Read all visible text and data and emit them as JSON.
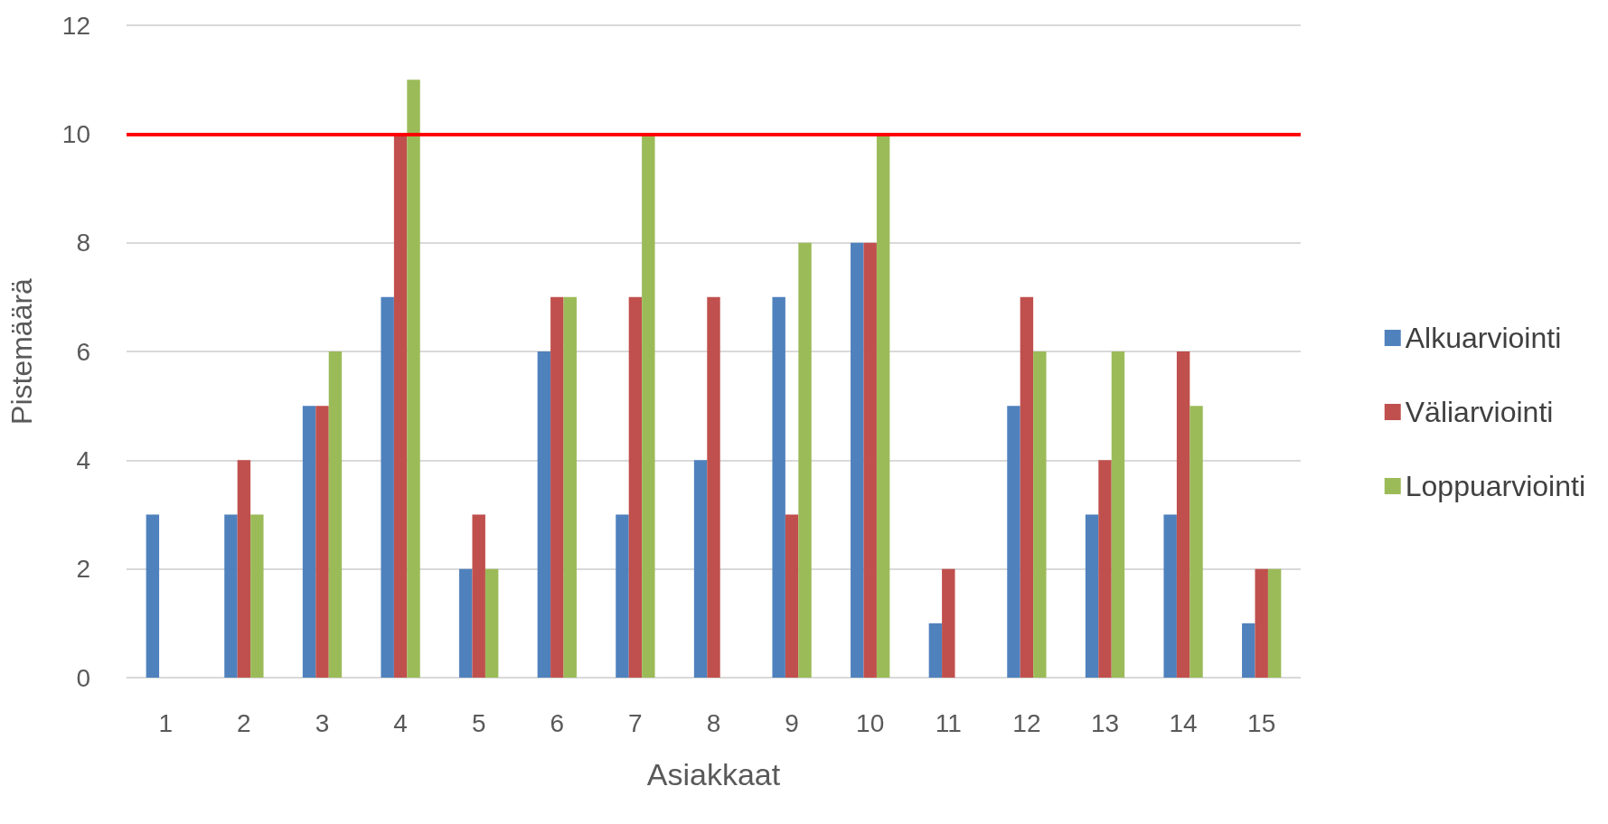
{
  "chart_data": {
    "type": "bar",
    "xlabel": "Asiakkaat",
    "ylabel": "Pistemäärä",
    "categories": [
      "1",
      "2",
      "3",
      "4",
      "5",
      "6",
      "7",
      "8",
      "9",
      "10",
      "11",
      "12",
      "13",
      "14",
      "15"
    ],
    "series": [
      {
        "name": "Alkuarviointi",
        "color": "#4f81bd",
        "values": [
          3,
          3,
          5,
          7,
          2,
          6,
          3,
          4,
          7,
          8,
          1,
          5,
          3,
          3,
          1
        ]
      },
      {
        "name": "Väliarviointi",
        "color": "#c0504d",
        "values": [
          0,
          4,
          5,
          10,
          3,
          7,
          7,
          7,
          3,
          8,
          2,
          7,
          4,
          6,
          2
        ]
      },
      {
        "name": "Loppuarviointi",
        "color": "#9bbb59",
        "values": [
          0,
          3,
          6,
          11,
          2,
          7,
          10,
          0,
          8,
          10,
          0,
          6,
          6,
          5,
          2
        ]
      }
    ],
    "ylim": [
      0,
      12
    ],
    "yticks": [
      0,
      2,
      4,
      6,
      8,
      10,
      12
    ],
    "grid": "y",
    "legend": "right",
    "ref_lines": [
      {
        "axis": "y",
        "value": 10,
        "color": "#ff0000"
      }
    ]
  }
}
